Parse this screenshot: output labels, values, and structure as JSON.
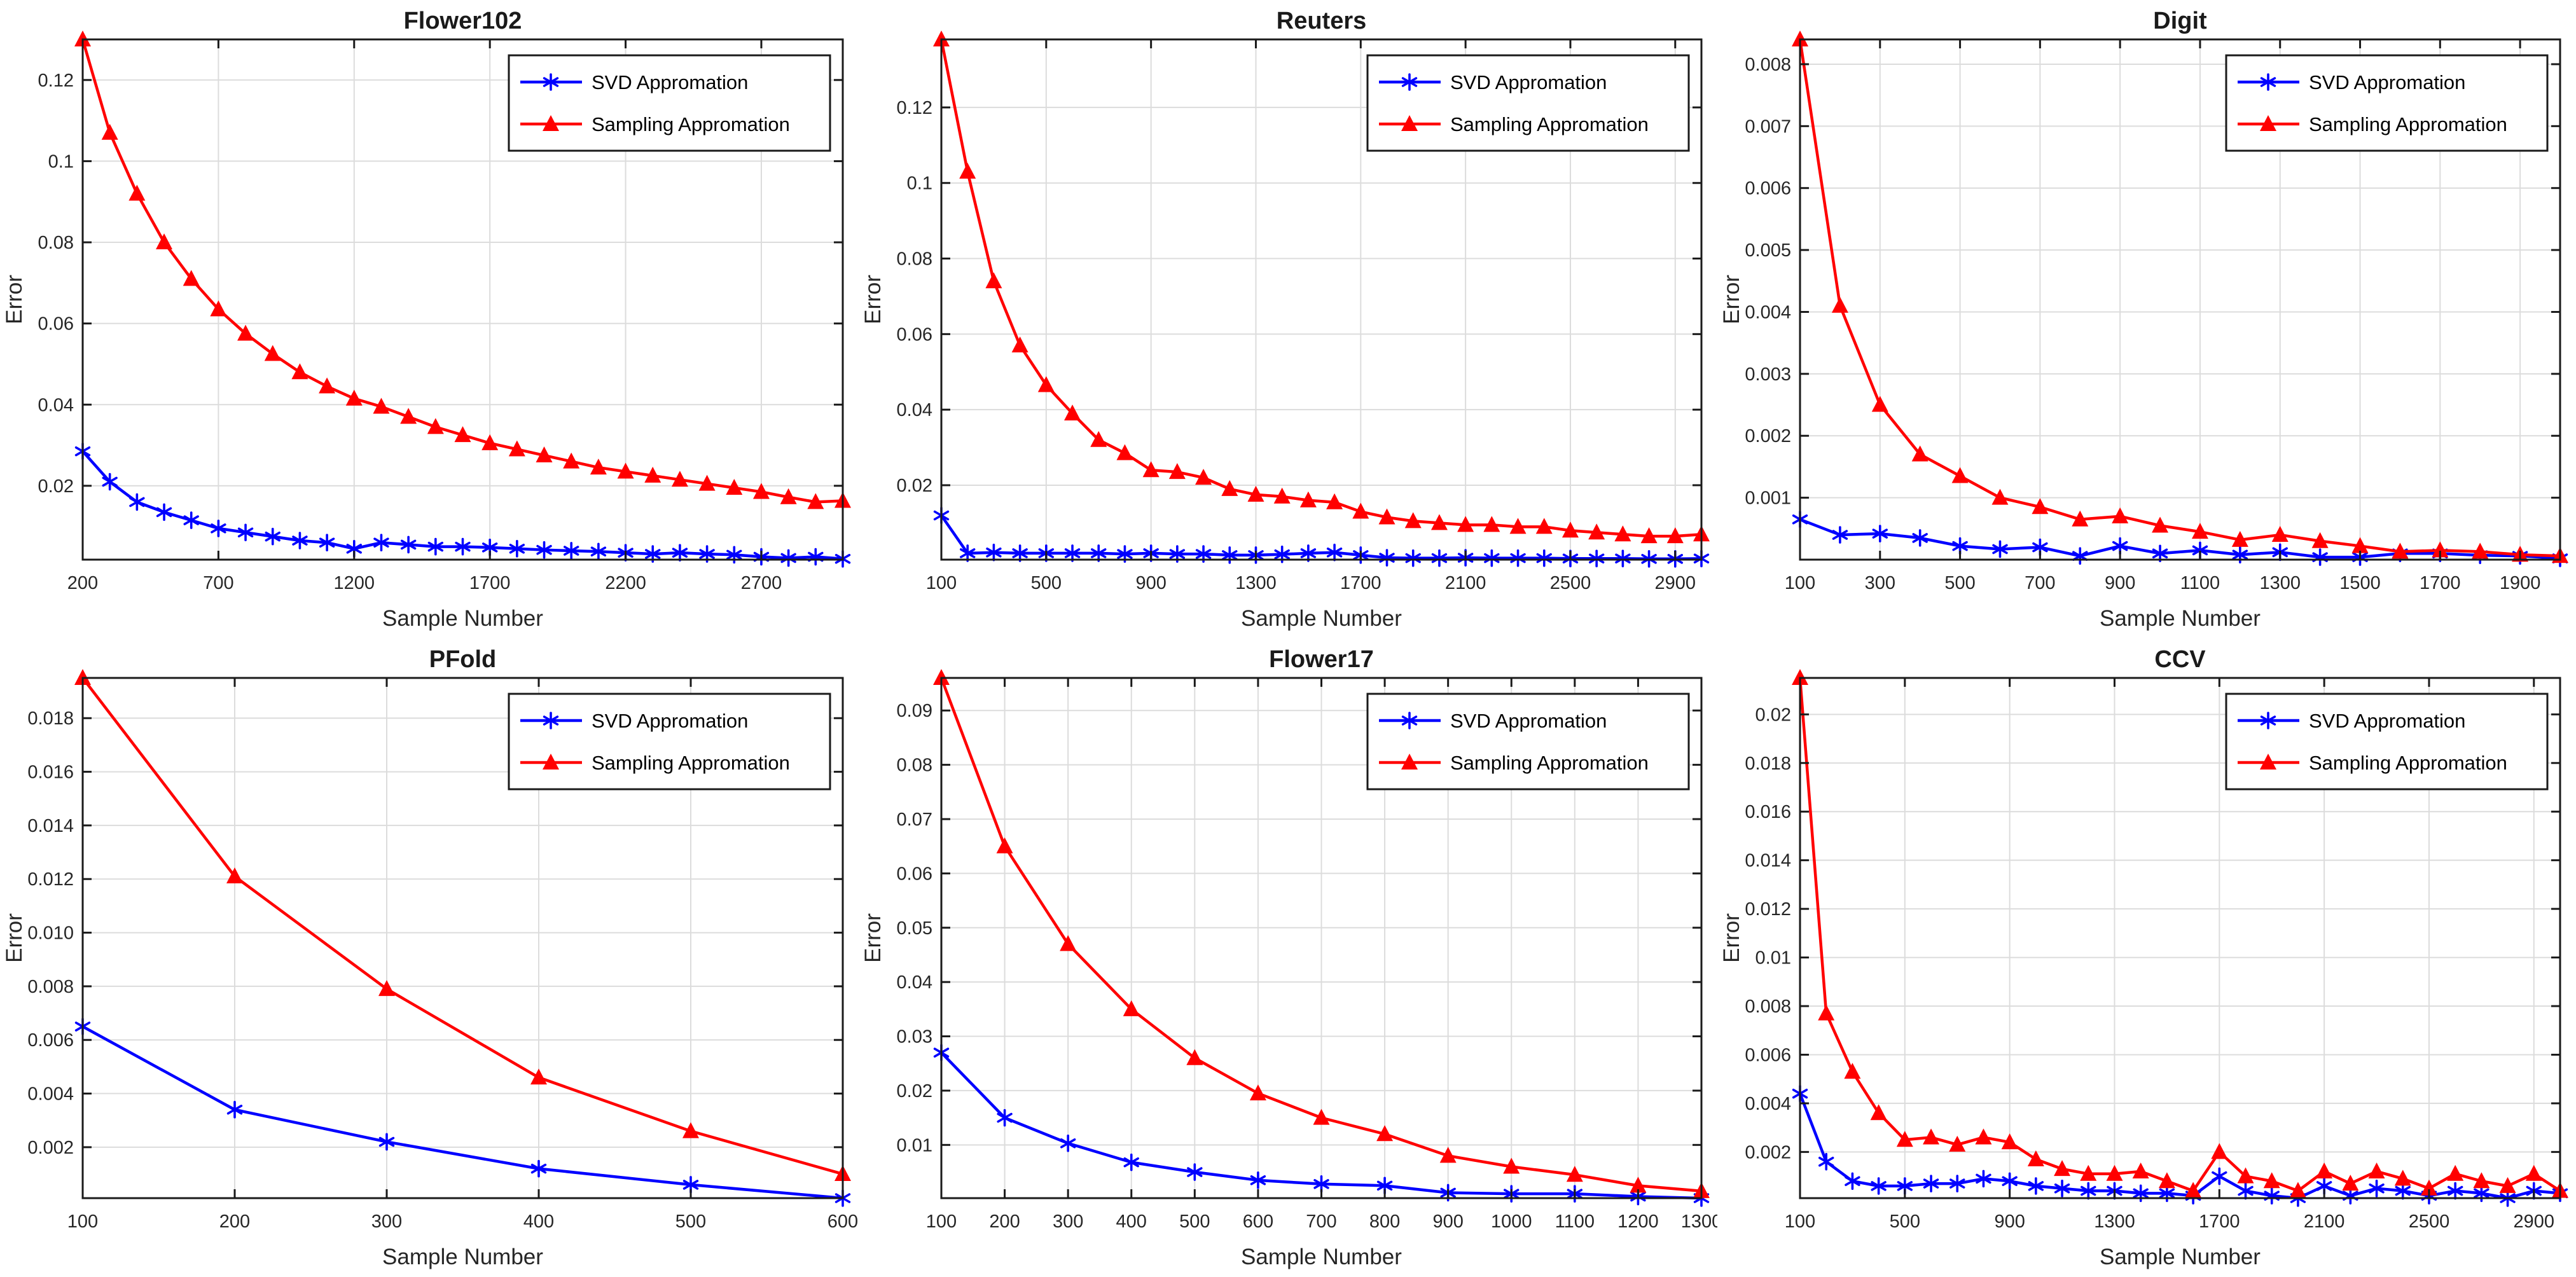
{
  "figure": {
    "xlabel": "Sample Number",
    "ylabel": "Error",
    "legend_labels": [
      "SVD Appromation",
      "Sampling Appromation"
    ],
    "colors": {
      "svd_line": "#0000ff",
      "sampling_line": "#ff0000",
      "grid": "#dcdcdc",
      "axis": "#1a1a1a",
      "background": "#ffffff",
      "legend_background": "#ffffff"
    }
  },
  "chart_data": [
    {
      "type": "line",
      "title": "Flower102",
      "xlabel": "Sample Number",
      "ylabel": "Error",
      "grid": true,
      "legend_position": "top-right",
      "xlim": [
        200,
        3000
      ],
      "ylim": [
        0.0018,
        0.13
      ],
      "xticks": [
        200,
        700,
        1200,
        1700,
        2200,
        2700
      ],
      "xtick_labels": [
        "200",
        "700",
        "1200",
        "1700",
        "2200",
        "2700"
      ],
      "yticks": [
        0.02,
        0.04,
        0.06,
        0.08,
        0.1,
        0.12
      ],
      "ytick_labels": [
        "0.02",
        "0.04",
        "0.06",
        "0.08",
        "0.1",
        "0.12"
      ],
      "series": [
        {
          "name": "SVD Appromation",
          "color": "#0000ff",
          "marker": "asterisk",
          "x": [
            200,
            300,
            400,
            500,
            600,
            700,
            800,
            900,
            1000,
            1100,
            1200,
            1300,
            1400,
            1500,
            1600,
            1700,
            1800,
            1900,
            2000,
            2100,
            2200,
            2300,
            2400,
            2500,
            2600,
            2700,
            2800,
            2900,
            3000
          ],
          "y": [
            0.0285,
            0.021,
            0.016,
            0.0135,
            0.0115,
            0.0095,
            0.0085,
            0.0075,
            0.0065,
            0.006,
            0.0045,
            0.006,
            0.0055,
            0.005,
            0.005,
            0.0048,
            0.0045,
            0.0042,
            0.004,
            0.0038,
            0.0035,
            0.0032,
            0.0035,
            0.0032,
            0.003,
            0.0025,
            0.0022,
            0.0025,
            0.002
          ]
        },
        {
          "name": "Sampling Appromation",
          "color": "#ff0000",
          "marker": "triangle",
          "x": [
            200,
            300,
            400,
            500,
            600,
            700,
            800,
            900,
            1000,
            1100,
            1200,
            1300,
            1400,
            1500,
            1600,
            1700,
            1800,
            1900,
            2000,
            2100,
            2200,
            2300,
            2400,
            2500,
            2600,
            2700,
            2800,
            2900,
            3000
          ],
          "y": [
            0.13,
            0.107,
            0.092,
            0.08,
            0.071,
            0.0635,
            0.0575,
            0.0525,
            0.048,
            0.0445,
            0.0415,
            0.0395,
            0.037,
            0.0345,
            0.0325,
            0.0305,
            0.029,
            0.0275,
            0.026,
            0.0245,
            0.0235,
            0.0225,
            0.0215,
            0.0205,
            0.0195,
            0.0185,
            0.0172,
            0.016,
            0.0163
          ]
        }
      ]
    },
    {
      "type": "line",
      "title": "Reuters",
      "xlabel": "Sample Number",
      "ylabel": "Error",
      "grid": true,
      "legend_position": "top-right",
      "xlim": [
        100,
        3000
      ],
      "ylim": [
        0.0003,
        0.138
      ],
      "xticks": [
        100,
        500,
        900,
        1300,
        1700,
        2100,
        2500,
        2900
      ],
      "xtick_labels": [
        "100",
        "500",
        "900",
        "1300",
        "1700",
        "2100",
        "2500",
        "2900"
      ],
      "yticks": [
        0.02,
        0.04,
        0.06,
        0.08,
        0.1,
        0.12
      ],
      "ytick_labels": [
        "0.02",
        "0.04",
        "0.06",
        "0.08",
        "0.1",
        "0.12"
      ],
      "series": [
        {
          "name": "SVD Appromation",
          "color": "#0000ff",
          "marker": "asterisk",
          "x": [
            100,
            200,
            300,
            400,
            500,
            600,
            700,
            800,
            900,
            1000,
            1100,
            1200,
            1300,
            1400,
            1500,
            1600,
            1700,
            1800,
            1900,
            2000,
            2100,
            2200,
            2300,
            2400,
            2500,
            2600,
            2700,
            2800,
            2900,
            3000
          ],
          "y": [
            0.012,
            0.002,
            0.0022,
            0.002,
            0.002,
            0.002,
            0.002,
            0.0018,
            0.002,
            0.0018,
            0.0018,
            0.0015,
            0.0015,
            0.0017,
            0.002,
            0.0022,
            0.0015,
            0.0008,
            0.0007,
            0.0007,
            0.0008,
            0.0007,
            0.0007,
            0.0007,
            0.0006,
            0.0006,
            0.0006,
            0.0005,
            0.0005,
            0.0006
          ]
        },
        {
          "name": "Sampling Appromation",
          "color": "#ff0000",
          "marker": "triangle",
          "x": [
            100,
            200,
            300,
            400,
            500,
            600,
            700,
            800,
            900,
            1000,
            1100,
            1200,
            1300,
            1400,
            1500,
            1600,
            1700,
            1800,
            1900,
            2000,
            2100,
            2200,
            2300,
            2400,
            2500,
            2600,
            2700,
            2800,
            2900,
            3000
          ],
          "y": [
            0.138,
            0.103,
            0.074,
            0.057,
            0.0465,
            0.039,
            0.032,
            0.0285,
            0.024,
            0.0235,
            0.022,
            0.019,
            0.0175,
            0.017,
            0.016,
            0.0155,
            0.013,
            0.0115,
            0.0105,
            0.01,
            0.0095,
            0.0095,
            0.009,
            0.009,
            0.008,
            0.0075,
            0.007,
            0.0065,
            0.0065,
            0.007
          ]
        }
      ]
    },
    {
      "type": "line",
      "title": "Digit",
      "xlabel": "Sample Number",
      "ylabel": "Error",
      "grid": true,
      "legend_position": "top-right",
      "xlim": [
        100,
        2000
      ],
      "ylim": [
        0.0,
        0.0084
      ],
      "xticks": [
        100,
        300,
        500,
        700,
        900,
        1100,
        1300,
        1500,
        1700,
        1900
      ],
      "xtick_labels": [
        "100",
        "300",
        "500",
        "700",
        "900",
        "1100",
        "1300",
        "1500",
        "1700",
        "1900"
      ],
      "yticks": [
        0.001,
        0.002,
        0.003,
        0.004,
        0.005,
        0.006,
        0.007,
        0.008
      ],
      "ytick_labels": [
        "0.001",
        "0.002",
        "0.003",
        "0.004",
        "0.005",
        "0.006",
        "0.007",
        "0.008"
      ],
      "series": [
        {
          "name": "SVD Appromation",
          "color": "#0000ff",
          "marker": "asterisk",
          "x": [
            100,
            200,
            300,
            400,
            500,
            600,
            700,
            800,
            900,
            1000,
            1100,
            1200,
            1300,
            1400,
            1500,
            1600,
            1700,
            1800,
            1900,
            2000
          ],
          "y": [
            0.00065,
            0.0004,
            0.00042,
            0.00035,
            0.00022,
            0.00017,
            0.0002,
            6e-05,
            0.00022,
            0.0001,
            0.00015,
            8e-05,
            0.00012,
            4e-05,
            4e-05,
            0.0001,
            0.0001,
            7e-05,
            6e-05,
            2e-05
          ]
        },
        {
          "name": "Sampling Appromation",
          "color": "#ff0000",
          "marker": "triangle",
          "x": [
            100,
            200,
            300,
            400,
            500,
            600,
            700,
            800,
            900,
            1000,
            1100,
            1200,
            1300,
            1400,
            1500,
            1600,
            1700,
            1800,
            1900,
            2000
          ],
          "y": [
            0.0084,
            0.0041,
            0.0025,
            0.0017,
            0.00135,
            0.001,
            0.00085,
            0.00065,
            0.0007,
            0.00055,
            0.00045,
            0.00032,
            0.0004,
            0.0003,
            0.00022,
            0.00013,
            0.00015,
            0.00013,
            8e-05,
            6e-05
          ]
        }
      ]
    },
    {
      "type": "line",
      "title": "PFold",
      "xlabel": "Sample Number",
      "ylabel": "Error",
      "grid": true,
      "legend_position": "top-right",
      "xlim": [
        100,
        600
      ],
      "ylim": [
        0.0001,
        0.0195
      ],
      "xticks": [
        100,
        200,
        300,
        400,
        500,
        600
      ],
      "xtick_labels": [
        "100",
        "200",
        "300",
        "400",
        "500",
        "600"
      ],
      "yticks": [
        0.002,
        0.004,
        0.006,
        0.008,
        0.01,
        0.012,
        0.014,
        0.016,
        0.018
      ],
      "ytick_labels": [
        "0.002",
        "0.004",
        "0.006",
        "0.008",
        "0.010",
        "0.012",
        "0.014",
        "0.016",
        "0.018"
      ],
      "series": [
        {
          "name": "SVD Appromation",
          "color": "#0000ff",
          "marker": "asterisk",
          "x": [
            100,
            200,
            300,
            400,
            500,
            600
          ],
          "y": [
            0.0065,
            0.0034,
            0.0022,
            0.0012,
            0.0006,
            0.0001
          ]
        },
        {
          "name": "Sampling Appromation",
          "color": "#ff0000",
          "marker": "triangle",
          "x": [
            100,
            200,
            300,
            400,
            500,
            600
          ],
          "y": [
            0.0195,
            0.0121,
            0.0079,
            0.0046,
            0.0026,
            0.001
          ]
        }
      ]
    },
    {
      "type": "line",
      "title": "Flower17",
      "xlabel": "Sample Number",
      "ylabel": "Error",
      "grid": true,
      "legend_position": "top-right",
      "xlim": [
        100,
        1300
      ],
      "ylim": [
        0.0002,
        0.096
      ],
      "xticks": [
        100,
        200,
        300,
        400,
        500,
        600,
        700,
        800,
        900,
        1000,
        1100,
        1200,
        1300
      ],
      "xtick_labels": [
        "100",
        "200",
        "300",
        "400",
        "500",
        "600",
        "700",
        "800",
        "900",
        "1000",
        "1100",
        "1200",
        "1300"
      ],
      "yticks": [
        0.01,
        0.02,
        0.03,
        0.04,
        0.05,
        0.06,
        0.07,
        0.08,
        0.09
      ],
      "ytick_labels": [
        "0.01",
        "0.02",
        "0.03",
        "0.04",
        "0.05",
        "0.06",
        "0.07",
        "0.08",
        "0.09"
      ],
      "series": [
        {
          "name": "SVD Appromation",
          "color": "#0000ff",
          "marker": "asterisk",
          "x": [
            100,
            200,
            300,
            400,
            500,
            600,
            700,
            800,
            900,
            1000,
            1100,
            1200,
            1300
          ],
          "y": [
            0.027,
            0.015,
            0.0103,
            0.0068,
            0.005,
            0.0035,
            0.0028,
            0.0025,
            0.0012,
            0.001,
            0.001,
            0.0005,
            0.0002
          ]
        },
        {
          "name": "Sampling Appromation",
          "color": "#ff0000",
          "marker": "triangle",
          "x": [
            100,
            200,
            300,
            400,
            500,
            600,
            700,
            800,
            900,
            1000,
            1100,
            1200,
            1300
          ],
          "y": [
            0.096,
            0.065,
            0.047,
            0.035,
            0.026,
            0.0195,
            0.015,
            0.012,
            0.008,
            0.006,
            0.0045,
            0.0025,
            0.0015
          ]
        }
      ]
    },
    {
      "type": "line",
      "title": "CCV",
      "xlabel": "Sample Number",
      "ylabel": "Error",
      "grid": true,
      "legend_position": "top-right",
      "xlim": [
        100,
        3000
      ],
      "ylim": [
        0.0001,
        0.0215
      ],
      "xticks": [
        100,
        500,
        900,
        1300,
        1700,
        2100,
        2500,
        2900
      ],
      "xtick_labels": [
        "100",
        "500",
        "900",
        "1300",
        "1700",
        "2100",
        "2500",
        "2900"
      ],
      "yticks": [
        0.002,
        0.004,
        0.006,
        0.008,
        0.01,
        0.012,
        0.014,
        0.016,
        0.018,
        0.02
      ],
      "ytick_labels": [
        "0.002",
        "0.004",
        "0.006",
        "0.008",
        "0.01",
        "0.012",
        "0.014",
        "0.016",
        "0.018",
        "0.02"
      ],
      "series": [
        {
          "name": "SVD Appromation",
          "color": "#0000ff",
          "marker": "asterisk",
          "x": [
            100,
            200,
            300,
            400,
            500,
            600,
            700,
            800,
            900,
            1000,
            1100,
            1200,
            1300,
            1400,
            1500,
            1600,
            1700,
            1800,
            1900,
            2000,
            2100,
            2200,
            2300,
            2400,
            2500,
            2600,
            2700,
            2800,
            2900,
            3000
          ],
          "y": [
            0.0044,
            0.0016,
            0.0008,
            0.0006,
            0.0006,
            0.0007,
            0.0007,
            0.0009,
            0.0008,
            0.0006,
            0.0005,
            0.0004,
            0.0004,
            0.0003,
            0.0003,
            0.0002,
            0.001,
            0.0004,
            0.0002,
            0.0001,
            0.0006,
            0.0002,
            0.0005,
            0.0004,
            0.0002,
            0.0004,
            0.0003,
            0.0001,
            0.0004,
            0.0003
          ]
        },
        {
          "name": "Sampling Appromation",
          "color": "#ff0000",
          "marker": "triangle",
          "x": [
            100,
            200,
            300,
            400,
            500,
            600,
            700,
            800,
            900,
            1000,
            1100,
            1200,
            1300,
            1400,
            1500,
            1600,
            1700,
            1800,
            1900,
            2000,
            2100,
            2200,
            2300,
            2400,
            2500,
            2600,
            2700,
            2800,
            2900,
            3000
          ],
          "y": [
            0.0215,
            0.0077,
            0.0053,
            0.0036,
            0.0025,
            0.0026,
            0.0023,
            0.0026,
            0.0024,
            0.0017,
            0.0013,
            0.0011,
            0.0011,
            0.0012,
            0.0008,
            0.0004,
            0.002,
            0.001,
            0.0008,
            0.0004,
            0.0012,
            0.0007,
            0.0012,
            0.0009,
            0.0005,
            0.0011,
            0.0008,
            0.0006,
            0.0011,
            0.0004
          ]
        }
      ]
    }
  ]
}
